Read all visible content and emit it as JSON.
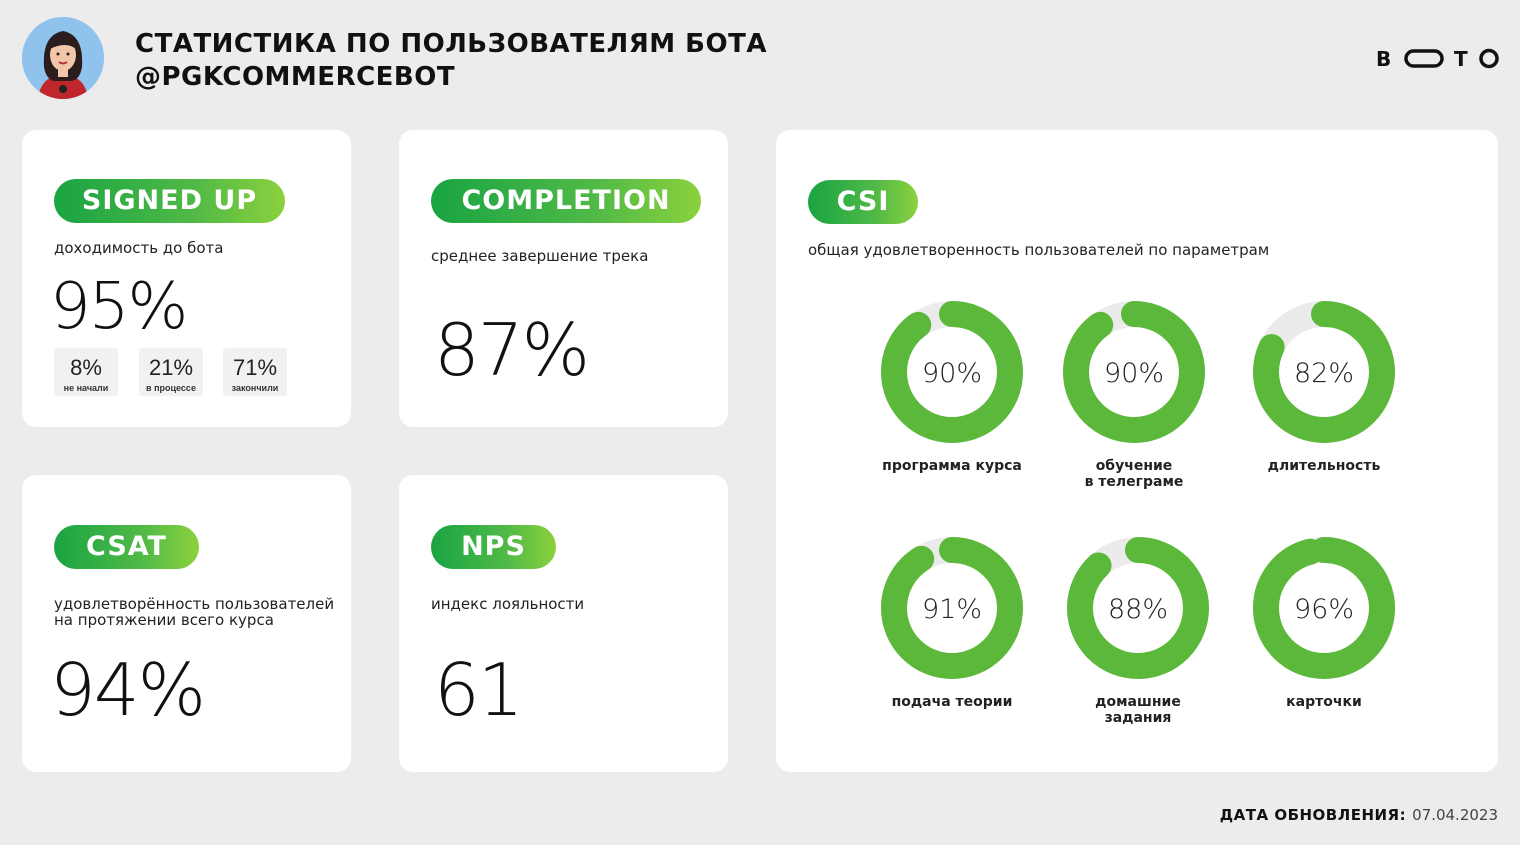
{
  "header": {
    "title_line1": "СТАТИСТИКА ПО ПОЛЬЗОВАТЕЛЯМ БОТА",
    "title_line2": "@PGKCOMMERCEBOT",
    "brand": "BOTO"
  },
  "signed_up": {
    "label": "SIGNED UP",
    "description": "доходимость до бота",
    "value": "95%",
    "breakdown": [
      {
        "value": "8%",
        "label": "не начали"
      },
      {
        "value": "21%",
        "label": "в процессе"
      },
      {
        "value": "71%",
        "label": "закончили"
      }
    ]
  },
  "completion": {
    "label": "COMPLETION",
    "description": "среднее  завершение трека",
    "value": "87%"
  },
  "csat": {
    "label": "CSAT",
    "description_line1": "удовлетворённость пользователей",
    "description_line2": "на протяжении всего курса",
    "value": "94%"
  },
  "nps": {
    "label": "NPS",
    "description": "индекс лояльности",
    "value": "61"
  },
  "csi": {
    "label": "CSI",
    "description": "общая удовлетворенность пользователей по параметрам",
    "colors": {
      "fill": "#5cb83a",
      "track": "#ebebeb"
    },
    "items": [
      {
        "value": 90,
        "text": "90%",
        "label_line1": "программа курса",
        "label_line2": ""
      },
      {
        "value": 90,
        "text": "90%",
        "label_line1": "обучение",
        "label_line2": "в телеграме"
      },
      {
        "value": 82,
        "text": "82%",
        "label_line1": "длительность",
        "label_line2": ""
      },
      {
        "value": 91,
        "text": "91%",
        "label_line1": "подача теории",
        "label_line2": ""
      },
      {
        "value": 88,
        "text": "88%",
        "label_line1": "домашние",
        "label_line2": "задания"
      },
      {
        "value": 96,
        "text": "96%",
        "label_line1": "карточки",
        "label_line2": ""
      }
    ]
  },
  "footer": {
    "label": "ДАТА ОБНОВЛЕНИЯ:",
    "date": "07.04.2023"
  }
}
